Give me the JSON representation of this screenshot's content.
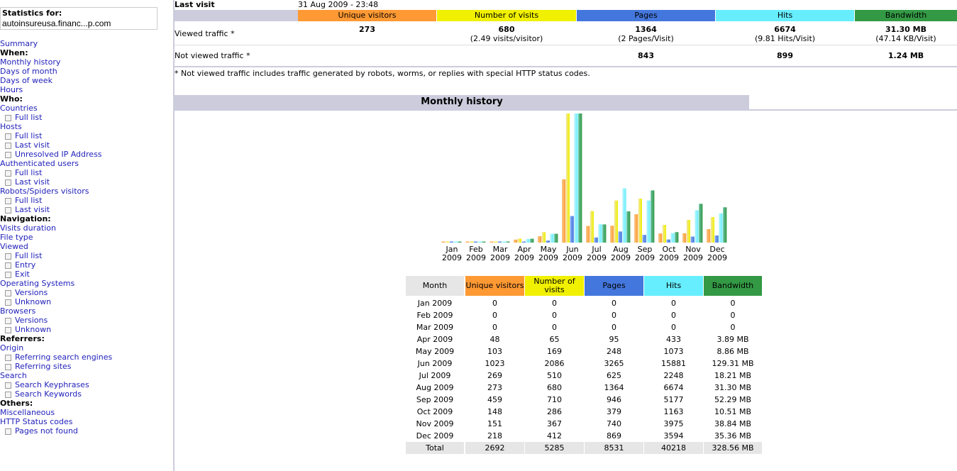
{
  "sidebar": {
    "title": "Statistics for:",
    "site": "autoinsureusa.financ...p.com",
    "items": [
      {
        "label": "Summary",
        "kind": "link"
      },
      {
        "label": "When:",
        "kind": "head"
      },
      {
        "label": "Monthly history",
        "kind": "link"
      },
      {
        "label": "Days of month",
        "kind": "link"
      },
      {
        "label": "Days of week",
        "kind": "link"
      },
      {
        "label": "Hours",
        "kind": "link"
      },
      {
        "label": "Who:",
        "kind": "head"
      },
      {
        "label": "Countries",
        "kind": "link"
      },
      {
        "label": "Full list",
        "kind": "sub"
      },
      {
        "label": "Hosts",
        "kind": "link"
      },
      {
        "label": "Full list",
        "kind": "sub"
      },
      {
        "label": "Last visit",
        "kind": "sub"
      },
      {
        "label": "Unresolved IP Address",
        "kind": "sub"
      },
      {
        "label": "Authenticated users",
        "kind": "link"
      },
      {
        "label": "Full list",
        "kind": "sub"
      },
      {
        "label": "Last visit",
        "kind": "sub"
      },
      {
        "label": "Robots/Spiders visitors",
        "kind": "link"
      },
      {
        "label": "Full list",
        "kind": "sub"
      },
      {
        "label": "Last visit",
        "kind": "sub"
      },
      {
        "label": "Navigation:",
        "kind": "head"
      },
      {
        "label": "Visits duration",
        "kind": "link"
      },
      {
        "label": "File type",
        "kind": "link"
      },
      {
        "label": "Viewed",
        "kind": "link"
      },
      {
        "label": "Full list",
        "kind": "sub"
      },
      {
        "label": "Entry",
        "kind": "sub"
      },
      {
        "label": "Exit",
        "kind": "sub"
      },
      {
        "label": "Operating Systems",
        "kind": "link"
      },
      {
        "label": "Versions",
        "kind": "sub"
      },
      {
        "label": "Unknown",
        "kind": "sub"
      },
      {
        "label": "Browsers",
        "kind": "link"
      },
      {
        "label": "Versions",
        "kind": "sub"
      },
      {
        "label": "Unknown",
        "kind": "sub"
      },
      {
        "label": "Referrers:",
        "kind": "head"
      },
      {
        "label": "Origin",
        "kind": "link"
      },
      {
        "label": "Referring search engines",
        "kind": "sub"
      },
      {
        "label": "Referring sites",
        "kind": "sub"
      },
      {
        "label": "Search",
        "kind": "link"
      },
      {
        "label": "Search Keyphrases",
        "kind": "sub"
      },
      {
        "label": "Search Keywords",
        "kind": "sub"
      },
      {
        "label": "Others:",
        "kind": "head"
      },
      {
        "label": "Miscellaneous",
        "kind": "link"
      },
      {
        "label": "HTTP Status codes",
        "kind": "link"
      },
      {
        "label": "Pages not found",
        "kind": "sub"
      }
    ]
  },
  "summary": {
    "last_visit_label": "Last visit",
    "last_visit_value": "31 Aug 2009 - 23:48",
    "headers": [
      "Unique visitors",
      "Number of visits",
      "Pages",
      "Hits",
      "Bandwidth"
    ],
    "viewed_label": "Viewed traffic *",
    "viewed": {
      "unique": "273",
      "visits": "680",
      "visits_sub": "(2.49 visits/visitor)",
      "pages": "1364",
      "pages_sub": "(2 Pages/Visit)",
      "hits": "6674",
      "hits_sub": "(9.81 Hits/Visit)",
      "bandwidth": "31.30 MB",
      "bandwidth_sub": "(47.14 KB/Visit)"
    },
    "not_viewed_label": "Not viewed traffic *",
    "not_viewed": {
      "pages": "843",
      "hits": "899",
      "bandwidth": "1.24 MB"
    },
    "note": "* Not viewed traffic includes traffic generated by robots, worms, or replies with special HTTP status codes."
  },
  "colors": {
    "unique": "#ff9933",
    "visits": "#f0f000",
    "pages": "#4477dd",
    "hits": "#66eeff",
    "bandwidth": "#339944",
    "header_bg": "#ccccdd"
  },
  "monthly": {
    "title": "Monthly history",
    "table_headers": [
      "Month",
      "Unique visitors",
      "Number of visits",
      "Pages",
      "Hits",
      "Bandwidth"
    ],
    "total_label": "Total",
    "totals": [
      "2692",
      "5285",
      "8531",
      "40218",
      "328.56 MB"
    ]
  },
  "chart_data": {
    "type": "bar",
    "title": "Monthly history",
    "categories": [
      "Jan 2009",
      "Feb 2009",
      "Mar 2009",
      "Apr 2009",
      "May 2009",
      "Jun 2009",
      "Jul 2009",
      "Aug 2009",
      "Sep 2009",
      "Oct 2009",
      "Nov 2009",
      "Dec 2009"
    ],
    "cat_lines": [
      [
        "Jan",
        "2009"
      ],
      [
        "Feb",
        "2009"
      ],
      [
        "Mar",
        "2009"
      ],
      [
        "Apr",
        "2009"
      ],
      [
        "May",
        "2009"
      ],
      [
        "Jun",
        "2009"
      ],
      [
        "Jul",
        "2009"
      ],
      [
        "Aug",
        "2009"
      ],
      [
        "Sep",
        "2009"
      ],
      [
        "Oct",
        "2009"
      ],
      [
        "Nov",
        "2009"
      ],
      [
        "Dec",
        "2009"
      ]
    ],
    "series": [
      {
        "name": "Unique visitors",
        "values": [
          0,
          0,
          0,
          48,
          103,
          1023,
          269,
          273,
          459,
          148,
          151,
          218
        ],
        "display": [
          "0",
          "0",
          "0",
          "48",
          "103",
          "1023",
          "269",
          "273",
          "459",
          "148",
          "151",
          "218"
        ]
      },
      {
        "name": "Number of visits",
        "values": [
          0,
          0,
          0,
          65,
          169,
          2086,
          510,
          680,
          710,
          286,
          367,
          412
        ],
        "display": [
          "0",
          "0",
          "0",
          "65",
          "169",
          "2086",
          "510",
          "680",
          "710",
          "286",
          "367",
          "412"
        ]
      },
      {
        "name": "Pages",
        "values": [
          0,
          0,
          0,
          95,
          248,
          3265,
          625,
          1364,
          946,
          379,
          740,
          869
        ],
        "display": [
          "0",
          "0",
          "0",
          "95",
          "248",
          "3265",
          "625",
          "1364",
          "946",
          "379",
          "740",
          "869"
        ]
      },
      {
        "name": "Hits",
        "values": [
          0,
          0,
          0,
          433,
          1073,
          15881,
          2248,
          6674,
          5177,
          1163,
          3975,
          3594
        ],
        "display": [
          "0",
          "0",
          "0",
          "433",
          "1073",
          "15881",
          "2248",
          "6674",
          "5177",
          "1163",
          "3975",
          "3594"
        ]
      },
      {
        "name": "Bandwidth",
        "values": [
          0,
          0,
          0,
          3.89,
          8.86,
          129.31,
          18.21,
          31.3,
          52.29,
          10.51,
          38.84,
          35.36
        ],
        "display": [
          "0",
          "0",
          "0",
          "3.89 MB",
          "8.86 MB",
          "129.31 MB",
          "18.21 MB",
          "31.30 MB",
          "52.29 MB",
          "10.51 MB",
          "38.84 MB",
          "35.36 MB"
        ]
      }
    ],
    "scale_groups": [
      [
        "Unique visitors",
        "Number of visits"
      ],
      [
        "Pages",
        "Hits"
      ],
      [
        "Bandwidth"
      ]
    ]
  }
}
